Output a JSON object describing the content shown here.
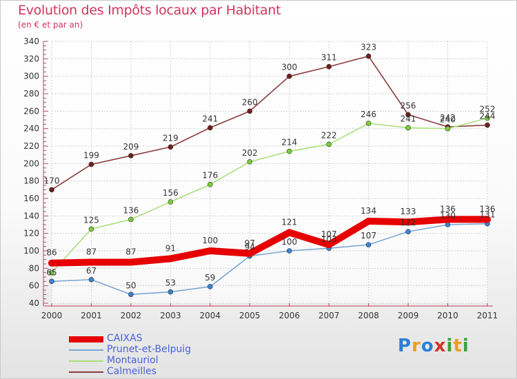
{
  "title": "Evolution des Impôts locaux par Habitant",
  "subtitle": "(en € et par an)",
  "logo": {
    "text": "Proxiti",
    "letters": [
      {
        "ch": "P",
        "color": "#2e7fd6"
      },
      {
        "ch": "r",
        "color": "#e8a020"
      },
      {
        "ch": "o",
        "color": "#2e7fd6"
      },
      {
        "ch": "x",
        "color": "#d0342c"
      },
      {
        "ch": "i",
        "color": "#3aa23a"
      },
      {
        "ch": "t",
        "color": "#e8a020"
      },
      {
        "ch": "i",
        "color": "#3aa23a"
      }
    ]
  },
  "chart_data": {
    "type": "line",
    "title": "Evolution des Impôts locaux par Habitant",
    "subtitle": "(en € et par an)",
    "x": [
      "2000",
      "2001",
      "2002",
      "2003",
      "2004",
      "2005",
      "2006",
      "2007",
      "2008",
      "2009",
      "2010",
      "2011"
    ],
    "ylim": [
      40,
      340
    ],
    "yticks": [
      40,
      60,
      80,
      100,
      120,
      140,
      160,
      180,
      200,
      220,
      240,
      260,
      280,
      300,
      320,
      340
    ],
    "grid": true,
    "legend": "bottom-left",
    "series": [
      {
        "name": "Calmeilles",
        "color": "#8b3a3a",
        "marker": "#6e1e1e",
        "values": [
          170,
          199,
          209,
          219,
          241,
          260,
          300,
          311,
          323,
          256,
          242,
          244
        ],
        "labels": [
          "170",
          "199",
          "209",
          "219",
          "241",
          "260",
          "300",
          "311",
          "323",
          "256",
          "242",
          "244"
        ]
      },
      {
        "name": "Montauriol",
        "color": "#a9e07e",
        "marker": "#7acc3a",
        "values": [
          75,
          125,
          136,
          156,
          176,
          202,
          214,
          222,
          246,
          241,
          240,
          252
        ],
        "labels": [
          "",
          "125",
          "136",
          "156",
          "176",
          "202",
          "214",
          "222",
          "246",
          "241",
          "240",
          "252"
        ]
      },
      {
        "name": "Prunet-et-Belpuig",
        "color": "#7aa6d6",
        "marker": "#3b83d0",
        "values": [
          65,
          67,
          50,
          53,
          59,
          94,
          100,
          103,
          107,
          122,
          130,
          131
        ],
        "labels": [
          "65",
          "67",
          "50",
          "53",
          "59",
          "94",
          "100",
          "103",
          "107",
          "122",
          "130",
          "131"
        ]
      },
      {
        "name": "CAIXAS",
        "color": "#e60000",
        "marker": "#e60000",
        "values": [
          86,
          87,
          87,
          91,
          100,
          97,
          121,
          107,
          134,
          133,
          136,
          136
        ],
        "labels": [
          "86",
          "87",
          "87",
          "91",
          "100",
          "97",
          "121",
          "107",
          "134",
          "133",
          "136",
          "136"
        ]
      }
    ],
    "legend_items": [
      {
        "name": "CAIXAS",
        "color": "#e60000",
        "width": 9
      },
      {
        "name": "Prunet-et-Belpuig",
        "color": "#7aa6d6",
        "width": 2
      },
      {
        "name": "Montauriol",
        "color": "#a9e07e",
        "width": 2
      },
      {
        "name": "Calmeilles",
        "color": "#8b3a3a",
        "width": 2
      }
    ]
  }
}
